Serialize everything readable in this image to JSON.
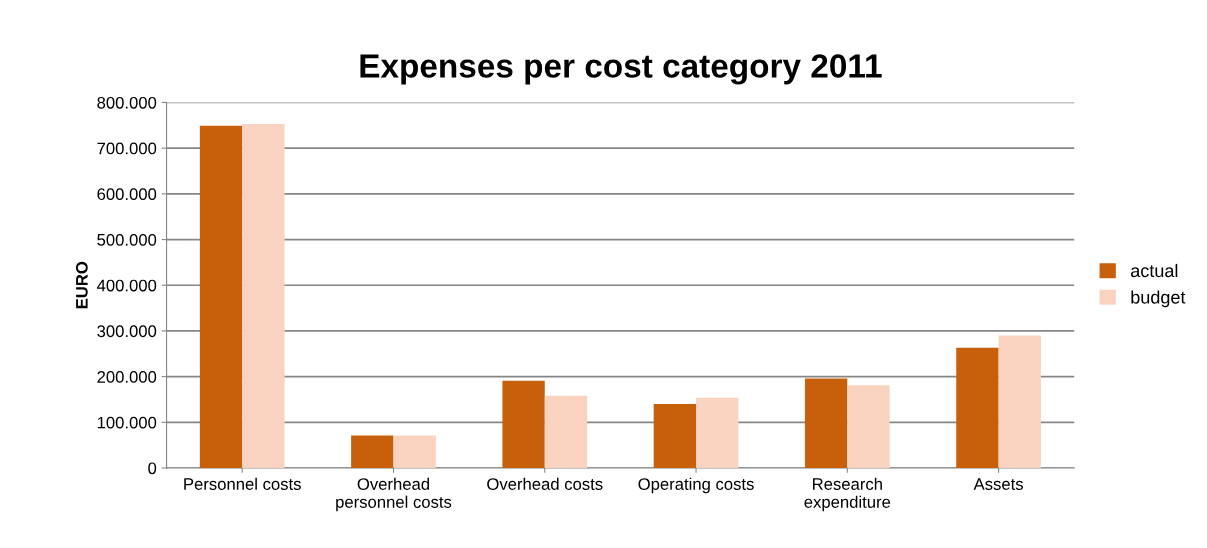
{
  "chart_data": {
    "type": "bar",
    "title": "Expenses per cost category 2011",
    "ylabel": "EURO",
    "categories": [
      "Personnel costs",
      "Overhead\npersonnel costs",
      "Overhead costs",
      "Operating costs",
      "Research\nexpenditure",
      "Assets"
    ],
    "series": [
      {
        "name": "actual",
        "color": "#c85f0a",
        "values": [
          749000,
          71000,
          191000,
          140000,
          196000,
          263000
        ]
      },
      {
        "name": "budget",
        "color": "#f9d3c0",
        "values": [
          753000,
          71000,
          158000,
          154000,
          181000,
          290000
        ]
      }
    ],
    "ylim": [
      0,
      800000
    ],
    "yticks": [
      {
        "value": 0,
        "label": "0"
      },
      {
        "value": 100000,
        "label": "100.000"
      },
      {
        "value": 200000,
        "label": "200.000"
      },
      {
        "value": 300000,
        "label": "300.000"
      },
      {
        "value": 400000,
        "label": "400.000"
      },
      {
        "value": 500000,
        "label": "500.000"
      },
      {
        "value": 600000,
        "label": "600.000"
      },
      {
        "value": 700000,
        "label": "700.000"
      },
      {
        "value": 800000,
        "label": "800.000"
      }
    ],
    "grid": "y",
    "legend": "right"
  }
}
